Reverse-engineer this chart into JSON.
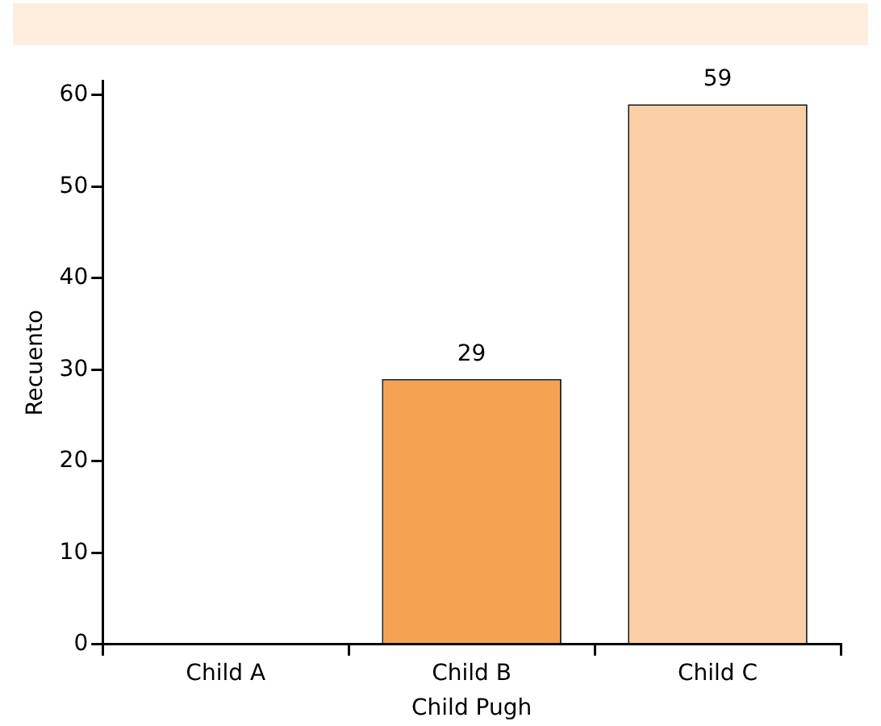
{
  "chart_data": {
    "type": "bar",
    "xlabel": "Child Pugh",
    "ylabel": "Recuento",
    "categories": [
      "Child A",
      "Child B",
      "Child C"
    ],
    "values": [
      0,
      29,
      59
    ],
    "colors": [
      "#f4a152",
      "#f4a152",
      "#fbcfa5"
    ],
    "value_labels": [
      null,
      "29",
      "59"
    ],
    "ylim": [
      0,
      61.5
    ],
    "yticks": [
      0,
      10,
      20,
      30,
      40,
      50,
      60
    ],
    "grid": false,
    "legend": false
  }
}
